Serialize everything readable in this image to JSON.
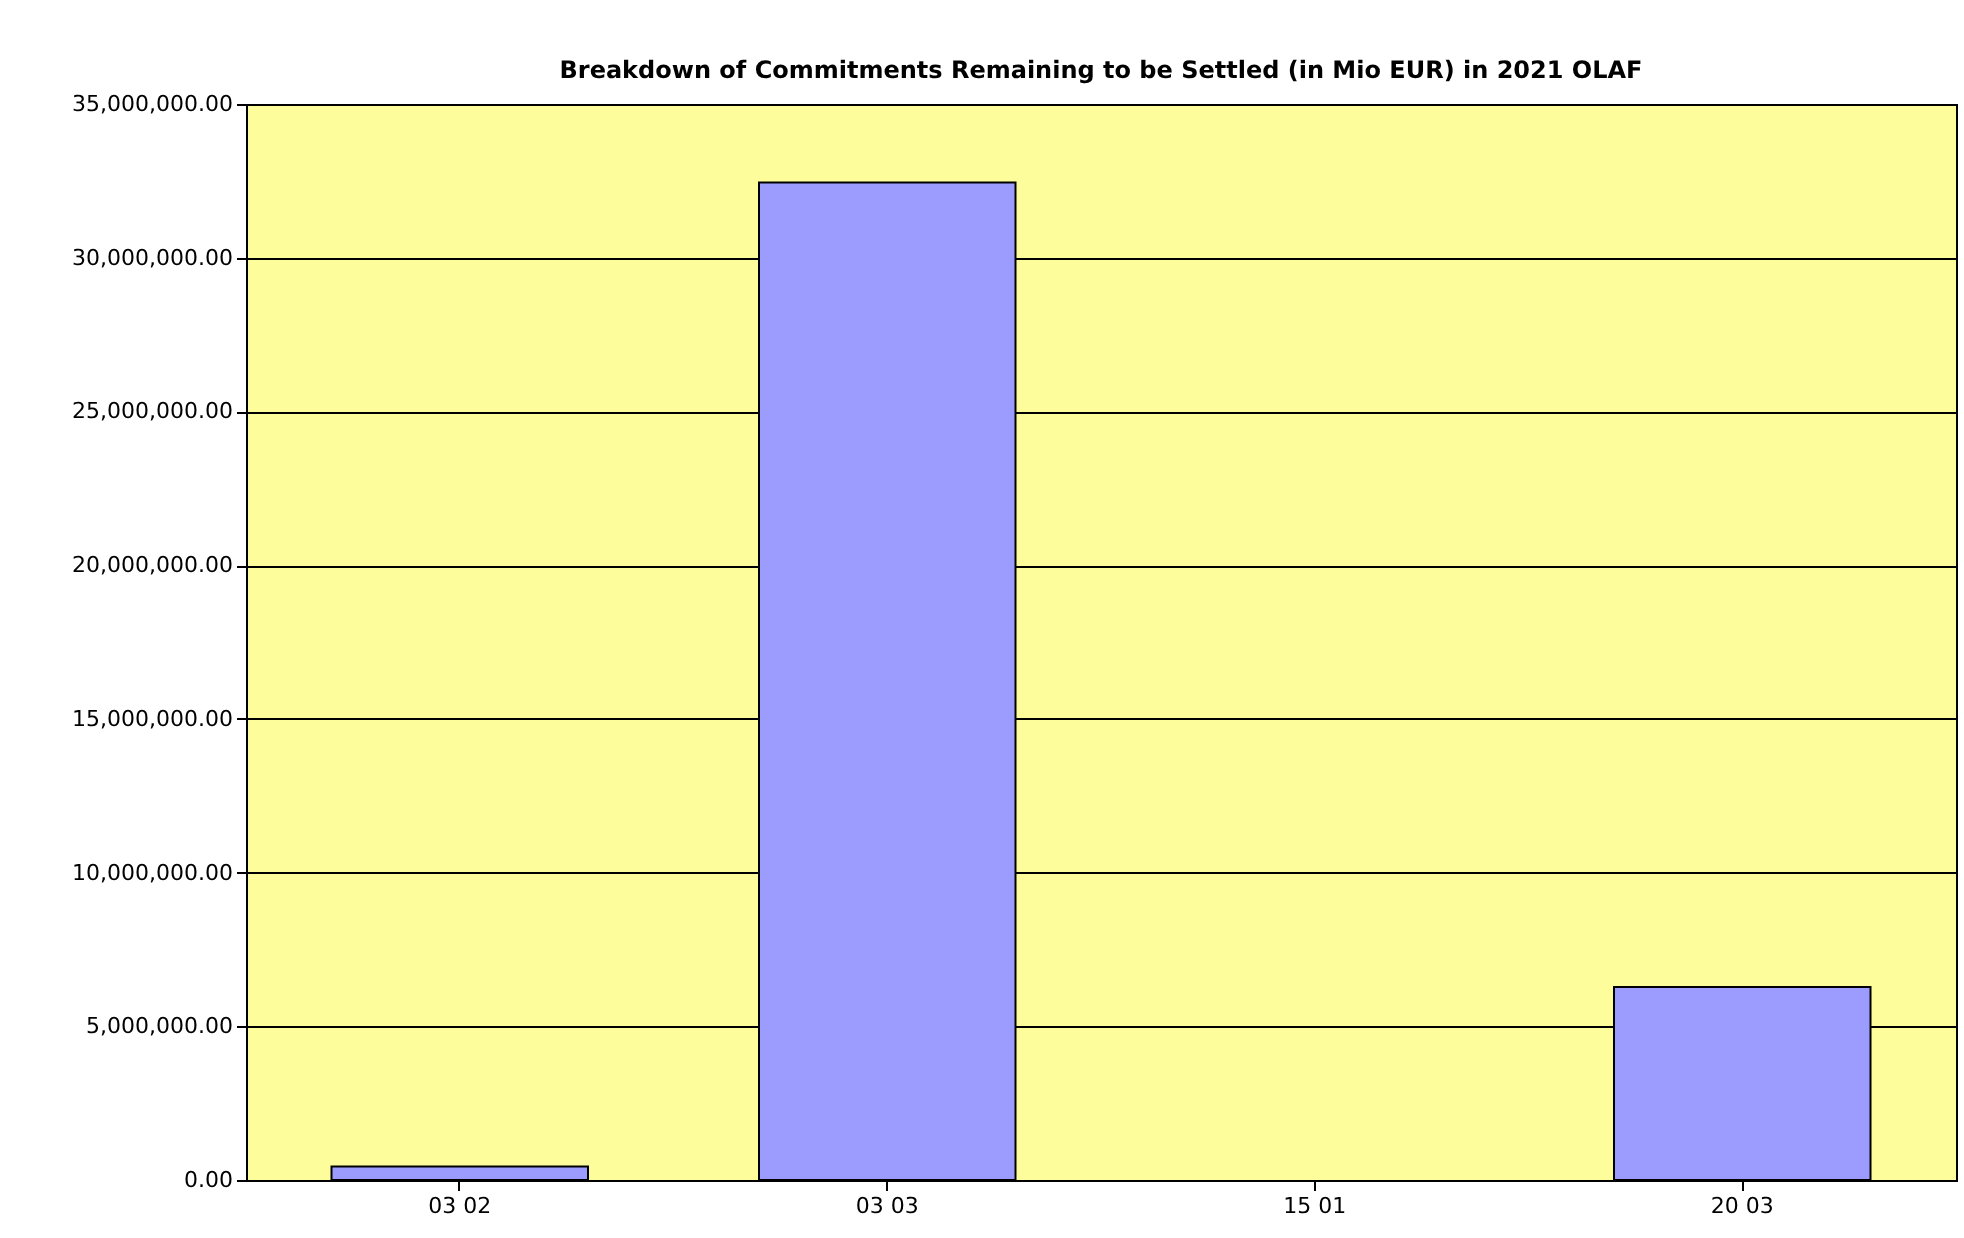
{
  "chart_data": {
    "type": "bar",
    "title": "Breakdown of Commitments Remaining to be Settled (in Mio EUR) in 2021 OLAF",
    "categories": [
      "03 02",
      "03 03",
      "15 01",
      "20 03"
    ],
    "values": [
      440000,
      32450000,
      0,
      6280000
    ],
    "color": "#9c9cff",
    "ylim": [
      0,
      35000000
    ],
    "yticks": [
      {
        "value": 0,
        "label": "0.00"
      },
      {
        "value": 5000000,
        "label": "5,000,000.00"
      },
      {
        "value": 10000000,
        "label": "10,000,000.00"
      },
      {
        "value": 15000000,
        "label": "15,000,000.00"
      },
      {
        "value": 20000000,
        "label": "20,000,000.00"
      },
      {
        "value": 25000000,
        "label": "25,000,000.00"
      },
      {
        "value": 30000000,
        "label": "30,000,000.00"
      },
      {
        "value": 35000000,
        "label": "35,000,000.00"
      }
    ],
    "grid": "y"
  }
}
